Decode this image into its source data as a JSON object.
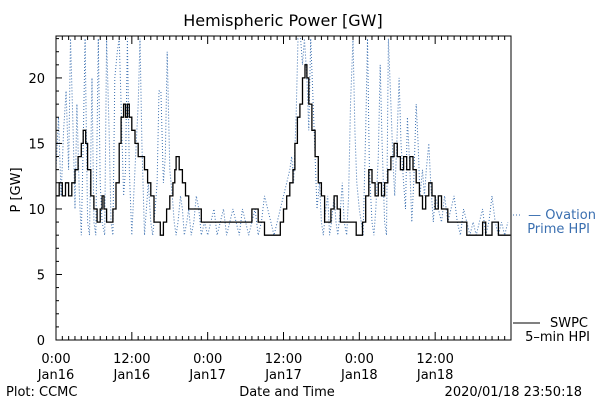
{
  "chart_data": {
    "type": "line",
    "title": "Hemispheric Power [GW]",
    "ylabel": "P [GW]",
    "xlabel": "Date and Time",
    "ylim": [
      0,
      23.2
    ],
    "xlim_hours": [
      0,
      72
    ],
    "y_ticks": [
      "0",
      "5",
      "10",
      "15",
      "20"
    ],
    "y_tick_values": [
      0,
      5,
      10,
      15,
      20
    ],
    "x_ticks": [
      {
        "top": "0:00",
        "bottom": "Jan16",
        "hour": 0
      },
      {
        "top": "12:00",
        "bottom": "Jan16",
        "hour": 12
      },
      {
        "top": "0:00",
        "bottom": "Jan17",
        "hour": 24
      },
      {
        "top": "12:00",
        "bottom": "Jan17",
        "hour": 36
      },
      {
        "top": "0:00",
        "bottom": "Jan18",
        "hour": 48
      },
      {
        "top": "12:00",
        "bottom": "Jan18",
        "hour": 60
      }
    ],
    "legend": [
      {
        "name": "— Ovation",
        "name2": "Prime HPI",
        "color": "#3a6fb0",
        "style": "dotted"
      },
      {
        "name": "SWPC",
        "name2": "5–min HPI",
        "color": "#000000",
        "style": "solid"
      }
    ],
    "footer": {
      "left": "Plot: CCMC",
      "right": "2020/01/18 23:50:18"
    },
    "series": [
      {
        "style": "solid",
        "color": "#000000",
        "points": [
          [
            0.0,
            11
          ],
          [
            0.5,
            12
          ],
          [
            1.0,
            11
          ],
          [
            1.5,
            12
          ],
          [
            2.0,
            11
          ],
          [
            2.5,
            12
          ],
          [
            3.0,
            13
          ],
          [
            3.5,
            14
          ],
          [
            4.0,
            15
          ],
          [
            4.3,
            16
          ],
          [
            4.7,
            15
          ],
          [
            5.0,
            13
          ],
          [
            5.5,
            11
          ],
          [
            6.0,
            10
          ],
          [
            6.5,
            9
          ],
          [
            7.0,
            10
          ],
          [
            7.3,
            11
          ],
          [
            7.6,
            10
          ],
          [
            8.0,
            9
          ],
          [
            8.5,
            9
          ],
          [
            9.0,
            10
          ],
          [
            9.5,
            12
          ],
          [
            10.0,
            15
          ],
          [
            10.3,
            17
          ],
          [
            10.7,
            18
          ],
          [
            11.0,
            17
          ],
          [
            11.3,
            18
          ],
          [
            11.6,
            17
          ],
          [
            12.0,
            16
          ],
          [
            12.5,
            15
          ],
          [
            13.0,
            14
          ],
          [
            13.5,
            14
          ],
          [
            14.0,
            13
          ],
          [
            14.5,
            12
          ],
          [
            15.0,
            11
          ],
          [
            15.5,
            9
          ],
          [
            16.0,
            9
          ],
          [
            16.5,
            8
          ],
          [
            17.0,
            9
          ],
          [
            17.5,
            10
          ],
          [
            18.0,
            11
          ],
          [
            18.5,
            12
          ],
          [
            18.8,
            13
          ],
          [
            19.0,
            14
          ],
          [
            19.5,
            13
          ],
          [
            20.0,
            12
          ],
          [
            20.5,
            11
          ],
          [
            21.0,
            10
          ],
          [
            22.0,
            10
          ],
          [
            23.0,
            9
          ],
          [
            24.0,
            9
          ],
          [
            25.0,
            9
          ],
          [
            26.0,
            9
          ],
          [
            27.0,
            9
          ],
          [
            28.0,
            9
          ],
          [
            29.0,
            9
          ],
          [
            30.0,
            9
          ],
          [
            31.0,
            10
          ],
          [
            32.0,
            9
          ],
          [
            33.0,
            8
          ],
          [
            34.0,
            8
          ],
          [
            35.0,
            8
          ],
          [
            35.5,
            9
          ],
          [
            36.0,
            10
          ],
          [
            36.5,
            11
          ],
          [
            37.0,
            12
          ],
          [
            37.5,
            13
          ],
          [
            37.8,
            15
          ],
          [
            38.2,
            17
          ],
          [
            38.6,
            18
          ],
          [
            39.0,
            20
          ],
          [
            39.4,
            21
          ],
          [
            39.7,
            20
          ],
          [
            40.0,
            18
          ],
          [
            40.5,
            16
          ],
          [
            41.0,
            14
          ],
          [
            41.5,
            12
          ],
          [
            42.0,
            11
          ],
          [
            42.5,
            9
          ],
          [
            43.0,
            9
          ],
          [
            43.5,
            10
          ],
          [
            44.0,
            11
          ],
          [
            44.5,
            10
          ],
          [
            45.0,
            9
          ],
          [
            45.5,
            9
          ],
          [
            46.0,
            9
          ],
          [
            47.0,
            9
          ],
          [
            47.5,
            8
          ],
          [
            48.0,
            8
          ],
          [
            48.5,
            9
          ],
          [
            49.0,
            11
          ],
          [
            49.5,
            13
          ],
          [
            50.0,
            12
          ],
          [
            50.5,
            11
          ],
          [
            51.0,
            12
          ],
          [
            51.5,
            11
          ],
          [
            52.0,
            12
          ],
          [
            52.5,
            13
          ],
          [
            53.0,
            14
          ],
          [
            53.5,
            15
          ],
          [
            54.0,
            14
          ],
          [
            54.5,
            13
          ],
          [
            55.0,
            14
          ],
          [
            55.5,
            13
          ],
          [
            56.0,
            14
          ],
          [
            56.5,
            13
          ],
          [
            57.0,
            12
          ],
          [
            57.5,
            11
          ],
          [
            58.0,
            10
          ],
          [
            58.5,
            11
          ],
          [
            59.0,
            12
          ],
          [
            59.5,
            11
          ],
          [
            60.0,
            10
          ],
          [
            60.5,
            11
          ],
          [
            61.0,
            10
          ],
          [
            61.5,
            10
          ],
          [
            62.0,
            9
          ],
          [
            63.0,
            9
          ],
          [
            64.0,
            9
          ],
          [
            65.0,
            8
          ],
          [
            66.0,
            8
          ],
          [
            67.0,
            8
          ],
          [
            67.5,
            9
          ],
          [
            68.0,
            8
          ],
          [
            68.5,
            8
          ],
          [
            69.0,
            9
          ],
          [
            70.0,
            8
          ],
          [
            71.0,
            8
          ],
          [
            71.9,
            8
          ]
        ]
      },
      {
        "style": "dotted",
        "color": "#3a6fb0",
        "points": [
          [
            0.0,
            13
          ],
          [
            0.4,
            17
          ],
          [
            0.8,
            11
          ],
          [
            1.2,
            16
          ],
          [
            1.6,
            19
          ],
          [
            2.0,
            13
          ],
          [
            2.3,
            23
          ],
          [
            2.7,
            16
          ],
          [
            3.0,
            10
          ],
          [
            3.3,
            18
          ],
          [
            3.7,
            11
          ],
          [
            4.0,
            8
          ],
          [
            4.3,
            15
          ],
          [
            4.6,
            23
          ],
          [
            5.0,
            9
          ],
          [
            5.3,
            8
          ],
          [
            5.7,
            20
          ],
          [
            6.0,
            9
          ],
          [
            6.3,
            8
          ],
          [
            6.7,
            23
          ],
          [
            7.0,
            12
          ],
          [
            7.3,
            9
          ],
          [
            7.7,
            8
          ],
          [
            8.0,
            23
          ],
          [
            8.4,
            16
          ],
          [
            8.7,
            9
          ],
          [
            9.0,
            8
          ],
          [
            9.3,
            20
          ],
          [
            9.7,
            22
          ],
          [
            10.0,
            23
          ],
          [
            10.3,
            18
          ],
          [
            10.7,
            11
          ],
          [
            11.0,
            13
          ],
          [
            11.3,
            23
          ],
          [
            11.6,
            13
          ],
          [
            12.0,
            8
          ],
          [
            12.3,
            11
          ],
          [
            12.6,
            14
          ],
          [
            13.0,
            18
          ],
          [
            13.3,
            23
          ],
          [
            13.6,
            15
          ],
          [
            14.0,
            8
          ],
          [
            14.3,
            10
          ],
          [
            14.6,
            12
          ],
          [
            15.0,
            9
          ],
          [
            15.3,
            8
          ],
          [
            15.7,
            10
          ],
          [
            16.0,
            12
          ],
          [
            16.3,
            19
          ],
          [
            16.6,
            19
          ],
          [
            17.0,
            12
          ],
          [
            17.3,
            14
          ],
          [
            17.6,
            22
          ],
          [
            18.0,
            13
          ],
          [
            18.4,
            11
          ],
          [
            18.7,
            9
          ],
          [
            19.0,
            8
          ],
          [
            19.3,
            9
          ],
          [
            19.7,
            11
          ],
          [
            20.0,
            10
          ],
          [
            20.3,
            8
          ],
          [
            20.7,
            9
          ],
          [
            21.0,
            10
          ],
          [
            21.4,
            8
          ],
          [
            21.8,
            9
          ],
          [
            22.2,
            11
          ],
          [
            22.6,
            10
          ],
          [
            23.0,
            8
          ],
          [
            23.5,
            9
          ],
          [
            24.0,
            8
          ],
          [
            24.5,
            9
          ],
          [
            25.0,
            10
          ],
          [
            25.5,
            8
          ],
          [
            26.0,
            9
          ],
          [
            26.5,
            10
          ],
          [
            27.0,
            8
          ],
          [
            27.5,
            9
          ],
          [
            28.0,
            10
          ],
          [
            28.5,
            9
          ],
          [
            29.0,
            8
          ],
          [
            29.5,
            10
          ],
          [
            30.0,
            9
          ],
          [
            30.5,
            8
          ],
          [
            31.0,
            9
          ],
          [
            31.5,
            10
          ],
          [
            32.0,
            8
          ],
          [
            32.5,
            9
          ],
          [
            33.0,
            11
          ],
          [
            33.5,
            10
          ],
          [
            34.0,
            9
          ],
          [
            34.5,
            8
          ],
          [
            35.0,
            9
          ],
          [
            35.5,
            10
          ],
          [
            36.0,
            11
          ],
          [
            36.5,
            12
          ],
          [
            37.0,
            13
          ],
          [
            37.3,
            14
          ],
          [
            37.6,
            12
          ],
          [
            38.0,
            17
          ],
          [
            38.3,
            23
          ],
          [
            38.7,
            23
          ],
          [
            39.0,
            21
          ],
          [
            39.3,
            23
          ],
          [
            39.7,
            20
          ],
          [
            40.0,
            16
          ],
          [
            40.3,
            23
          ],
          [
            40.7,
            18
          ],
          [
            41.0,
            14
          ],
          [
            41.3,
            10
          ],
          [
            41.7,
            12
          ],
          [
            42.0,
            9
          ],
          [
            42.3,
            8
          ],
          [
            42.7,
            10
          ],
          [
            43.0,
            11
          ],
          [
            43.3,
            8
          ],
          [
            43.6,
            9
          ],
          [
            44.0,
            11
          ],
          [
            44.3,
            9
          ],
          [
            44.6,
            8
          ],
          [
            45.0,
            10
          ],
          [
            45.3,
            12
          ],
          [
            45.6,
            9
          ],
          [
            46.0,
            8
          ],
          [
            46.3,
            11
          ],
          [
            46.6,
            18
          ],
          [
            47.0,
            23
          ],
          [
            47.3,
            16
          ],
          [
            47.6,
            12
          ],
          [
            48.0,
            10
          ],
          [
            48.3,
            9
          ],
          [
            48.6,
            8
          ],
          [
            49.0,
            16
          ],
          [
            49.3,
            23
          ],
          [
            49.6,
            13
          ],
          [
            50.0,
            9
          ],
          [
            50.3,
            8
          ],
          [
            50.6,
            10
          ],
          [
            51.0,
            14
          ],
          [
            51.3,
            21
          ],
          [
            51.6,
            15
          ],
          [
            52.0,
            9
          ],
          [
            52.3,
            8
          ],
          [
            52.6,
            23
          ],
          [
            53.0,
            18
          ],
          [
            53.3,
            14
          ],
          [
            53.6,
            11
          ],
          [
            54.0,
            16
          ],
          [
            54.3,
            20
          ],
          [
            54.6,
            15
          ],
          [
            55.0,
            12
          ],
          [
            55.3,
            10
          ],
          [
            55.6,
            17
          ],
          [
            56.0,
            13
          ],
          [
            56.3,
            9
          ],
          [
            56.6,
            12
          ],
          [
            57.0,
            18
          ],
          [
            57.3,
            15
          ],
          [
            57.6,
            11
          ],
          [
            58.0,
            13
          ],
          [
            58.3,
            11
          ],
          [
            58.6,
            13
          ],
          [
            59.0,
            15
          ],
          [
            59.3,
            12
          ],
          [
            59.7,
            9
          ],
          [
            60.0,
            11
          ],
          [
            60.5,
            10
          ],
          [
            61.0,
            9
          ],
          [
            61.5,
            11
          ],
          [
            62.0,
            9
          ],
          [
            62.5,
            10
          ],
          [
            63.0,
            11
          ],
          [
            63.5,
            9
          ],
          [
            64.0,
            8
          ],
          [
            64.5,
            10
          ],
          [
            65.0,
            9
          ],
          [
            65.5,
            8
          ],
          [
            66.0,
            9
          ],
          [
            66.5,
            8
          ],
          [
            67.0,
            9
          ],
          [
            67.5,
            10
          ],
          [
            68.0,
            8
          ],
          [
            68.5,
            9
          ],
          [
            69.0,
            11
          ],
          [
            69.5,
            9
          ],
          [
            70.0,
            8
          ],
          [
            70.5,
            9
          ],
          [
            71.0,
            8
          ],
          [
            71.5,
            9
          ]
        ]
      }
    ]
  }
}
